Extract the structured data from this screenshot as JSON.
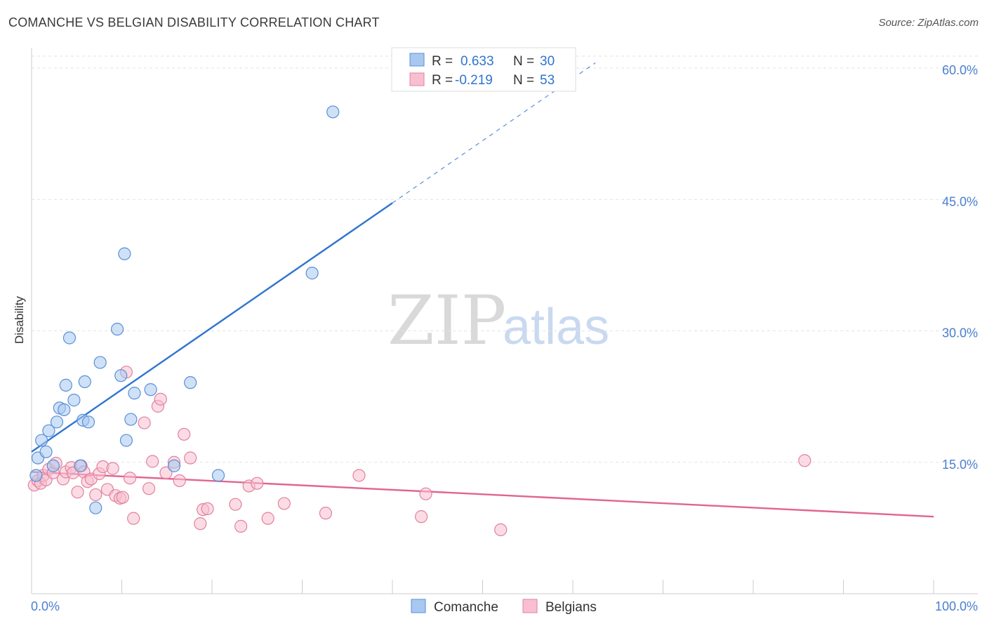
{
  "chart_data": {
    "type": "scatter",
    "title": "COMANCHE VS BELGIAN DISABILITY CORRELATION CHART",
    "source": "Source: ZipAtlas.com",
    "xlabel": "",
    "ylabel": "Disability",
    "xlim": [
      0,
      100
    ],
    "ylim": [
      0,
      60
    ],
    "x_tick_labels": {
      "min": "0.0%",
      "max": "100.0%"
    },
    "y_ticks": [
      {
        "value": 15,
        "label": "15.0%"
      },
      {
        "value": 30,
        "label": "30.0%"
      },
      {
        "value": 45,
        "label": "45.0%"
      },
      {
        "value": 60,
        "label": "60.0%"
      }
    ],
    "grid": true,
    "legend_position": "top-center",
    "watermark": {
      "zip": "ZIP",
      "atlas": "atlas"
    },
    "series": [
      {
        "name": "Comanche",
        "color": "#a8c8f0",
        "stroke": "#5a8fd6",
        "line_color": "#2f74d0",
        "r_label": "R =",
        "r_value": "0.633",
        "n_label": "N =",
        "n_value": "30",
        "trend": {
          "x0": 0,
          "y0": 16.2,
          "x1": 40,
          "y1": 44.6,
          "dash_x1": 62.5,
          "dash_y1": 60.6
        },
        "points": [
          [
            0.5,
            13.5
          ],
          [
            0.7,
            15.5
          ],
          [
            1.1,
            17.5
          ],
          [
            1.6,
            16.2
          ],
          [
            1.9,
            18.6
          ],
          [
            2.4,
            14.6
          ],
          [
            2.8,
            19.6
          ],
          [
            3.1,
            21.2
          ],
          [
            3.6,
            21.0
          ],
          [
            3.8,
            23.8
          ],
          [
            4.2,
            29.2
          ],
          [
            4.7,
            22.1
          ],
          [
            5.4,
            14.6
          ],
          [
            5.7,
            19.8
          ],
          [
            5.9,
            24.2
          ],
          [
            6.3,
            19.6
          ],
          [
            7.1,
            9.8
          ],
          [
            7.6,
            26.4
          ],
          [
            9.5,
            30.2
          ],
          [
            9.9,
            24.9
          ],
          [
            10.3,
            38.8
          ],
          [
            10.5,
            17.5
          ],
          [
            11.0,
            19.9
          ],
          [
            11.4,
            22.9
          ],
          [
            13.2,
            23.3
          ],
          [
            15.8,
            14.6
          ],
          [
            17.6,
            24.1
          ],
          [
            20.7,
            13.5
          ],
          [
            31.1,
            36.6
          ],
          [
            33.4,
            55.0
          ]
        ]
      },
      {
        "name": "Belgians",
        "color": "#f8bfd0",
        "stroke": "#e2809f",
        "line_color": "#e26490",
        "r_label": "R =",
        "r_value": "-0.219",
        "n_label": "N =",
        "n_value": "53",
        "trend": {
          "x0": 0,
          "y0": 13.9,
          "x1": 100,
          "y1": 8.8
        },
        "points": [
          [
            0.3,
            12.4
          ],
          [
            0.7,
            12.9
          ],
          [
            1.0,
            12.6
          ],
          [
            1.3,
            13.5
          ],
          [
            1.6,
            13.0
          ],
          [
            1.9,
            14.2
          ],
          [
            2.4,
            13.8
          ],
          [
            2.7,
            14.9
          ],
          [
            3.5,
            13.1
          ],
          [
            3.8,
            13.9
          ],
          [
            4.4,
            14.4
          ],
          [
            4.6,
            13.8
          ],
          [
            5.1,
            11.6
          ],
          [
            5.5,
            14.6
          ],
          [
            5.8,
            13.9
          ],
          [
            6.2,
            12.8
          ],
          [
            6.6,
            13.1
          ],
          [
            7.1,
            11.3
          ],
          [
            7.5,
            13.7
          ],
          [
            7.9,
            14.5
          ],
          [
            8.4,
            11.9
          ],
          [
            9.0,
            14.3
          ],
          [
            9.3,
            11.2
          ],
          [
            9.8,
            10.9
          ],
          [
            10.1,
            11.0
          ],
          [
            10.5,
            25.3
          ],
          [
            10.9,
            13.2
          ],
          [
            11.3,
            8.6
          ],
          [
            12.5,
            19.5
          ],
          [
            13.0,
            12.0
          ],
          [
            13.4,
            15.1
          ],
          [
            14.0,
            21.4
          ],
          [
            14.3,
            22.2
          ],
          [
            14.9,
            13.8
          ],
          [
            15.8,
            15.0
          ],
          [
            16.4,
            12.9
          ],
          [
            16.9,
            18.2
          ],
          [
            17.6,
            15.5
          ],
          [
            18.7,
            8.0
          ],
          [
            19.0,
            9.6
          ],
          [
            19.5,
            9.7
          ],
          [
            22.6,
            10.2
          ],
          [
            23.2,
            7.7
          ],
          [
            24.1,
            12.3
          ],
          [
            25.0,
            12.6
          ],
          [
            26.2,
            8.6
          ],
          [
            28.0,
            10.3
          ],
          [
            32.6,
            9.2
          ],
          [
            36.3,
            13.5
          ],
          [
            43.2,
            8.8
          ],
          [
            43.7,
            11.4
          ],
          [
            52.0,
            7.3
          ],
          [
            85.7,
            15.2
          ]
        ]
      }
    ]
  }
}
